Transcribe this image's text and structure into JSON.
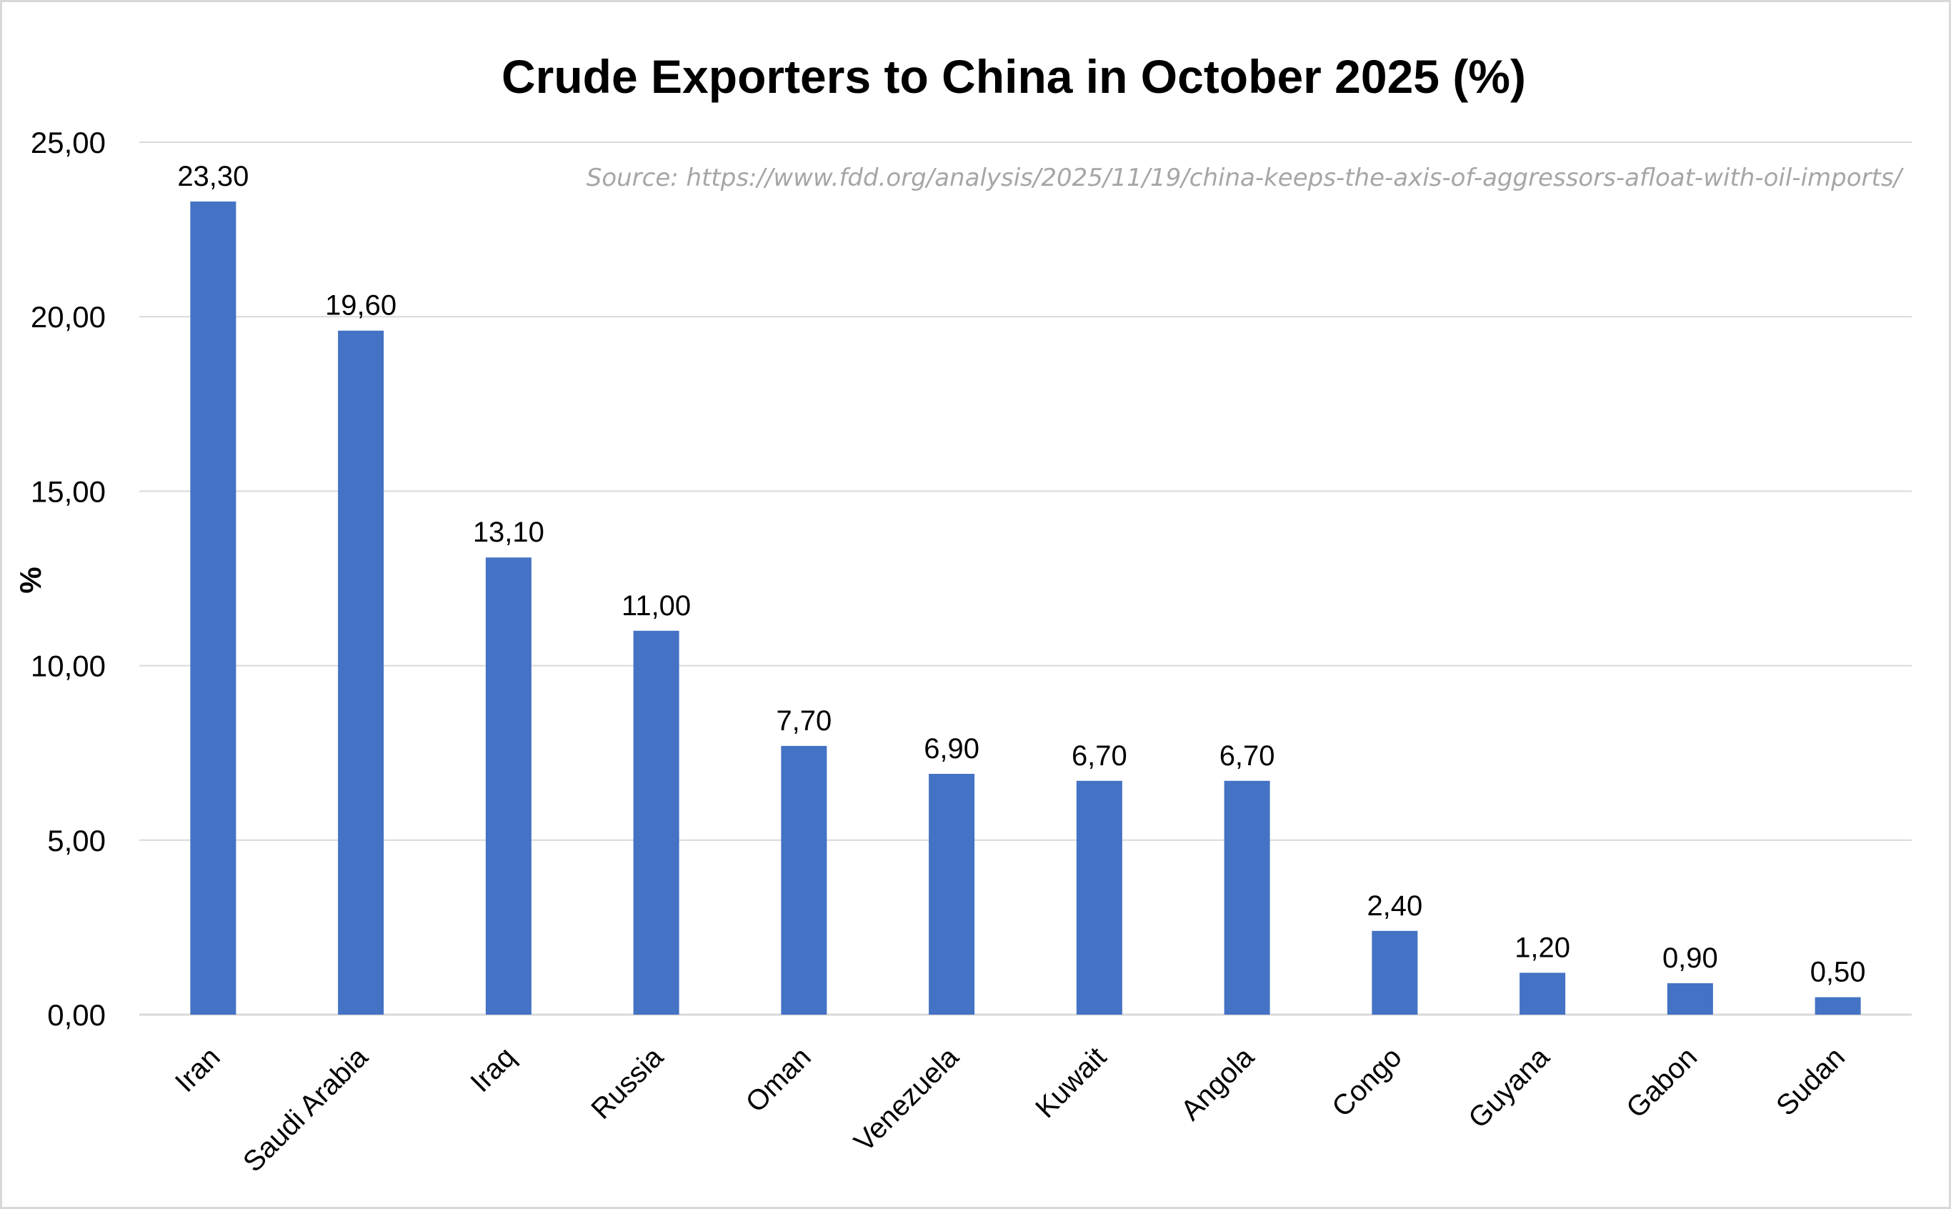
{
  "chart_data": {
    "type": "bar",
    "title": "Crude Exporters to China in October 2025 (%)",
    "source": "Source: https://www.fdd.org/analysis/2025/11/19/china-keeps-the-axis-of-aggressors-afloat-with-oil-imports/",
    "xlabel": "",
    "ylabel": "%",
    "ylim": [
      0,
      25
    ],
    "yticks": [
      {
        "value": 0,
        "label": "0,00"
      },
      {
        "value": 5,
        "label": "5,00"
      },
      {
        "value": 10,
        "label": "10,00"
      },
      {
        "value": 15,
        "label": "15,00"
      },
      {
        "value": 20,
        "label": "20,00"
      },
      {
        "value": 25,
        "label": "25,00"
      }
    ],
    "categories": [
      "Iran",
      "Saudi Arabia",
      "Iraq",
      "Russia",
      "Oman",
      "Venezuela",
      "Kuwait",
      "Angola",
      "Congo",
      "Guyana",
      "Gabon",
      "Sudan"
    ],
    "values": [
      23.3,
      19.6,
      13.1,
      11.0,
      7.7,
      6.9,
      6.7,
      6.7,
      2.4,
      1.2,
      0.9,
      0.5
    ],
    "value_labels": [
      "23,30",
      "19,60",
      "13,10",
      "11,00",
      "7,70",
      "6,90",
      "6,70",
      "6,70",
      "2,40",
      "1,20",
      "0,90",
      "0,50"
    ],
    "bar_color": "#4472c4",
    "grid": true,
    "legend": false
  }
}
